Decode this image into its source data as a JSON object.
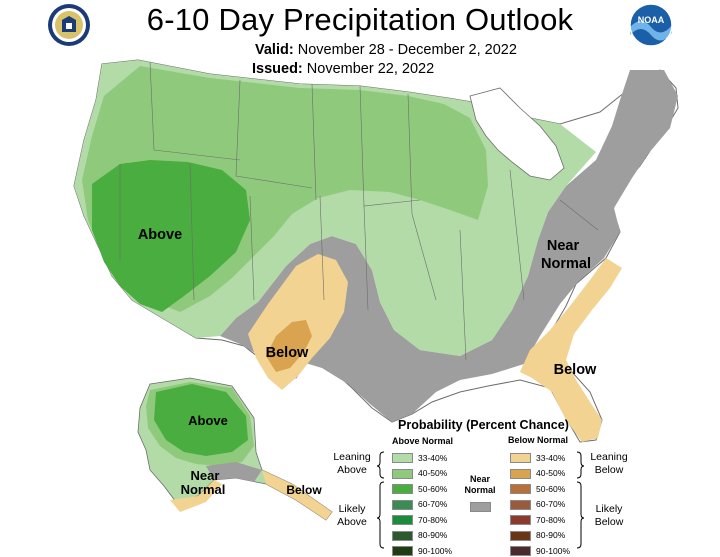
{
  "header": {
    "title": "6-10 Day Precipitation Outlook",
    "valid_label": "Valid:",
    "valid_value": "November 28 - December 2, 2022",
    "issued_label": "Issued:",
    "issued_value": "November 22, 2022",
    "left_logo": "dept-of-commerce-seal",
    "right_logo": "noaa-logo",
    "right_logo_text": "NOAA"
  },
  "map": {
    "labels": {
      "above": "Above",
      "below_sw": "Below",
      "near_line1": "Near",
      "near_line2": "Normal",
      "below_se": "Below",
      "ak_above": "Above",
      "ak_near_line1": "Near",
      "ak_near_line2": "Normal",
      "ak_below": "Below"
    },
    "colors": {
      "above_33_40": "#b3dba8",
      "above_40_50": "#8fc97c",
      "above_50_60": "#4aad3f",
      "near_normal": "#9e9e9e",
      "below_33_40": "#f2d391",
      "below_40_50": "#d9a34f",
      "no_shading": "#ffffff"
    }
  },
  "legend": {
    "title": "Probability (Percent Chance)",
    "above_header": "Above Normal",
    "below_header": "Below Normal",
    "near_label_line1": "Near",
    "near_label_line2": "Normal",
    "leaning_above_line1": "Leaning",
    "leaning_above_line2": "Above",
    "likely_above_line1": "Likely",
    "likely_above_line2": "Above",
    "leaning_below_line1": "Leaning",
    "leaning_below_line2": "Below",
    "likely_below_line1": "Likely",
    "likely_below_line2": "Below",
    "rows": [
      "33-40%",
      "40-50%",
      "50-60%",
      "60-70%",
      "70-80%",
      "80-90%",
      "90-100%"
    ],
    "above_colors": [
      "#b3dba8",
      "#8fc97c",
      "#4aad3f",
      "#3a8b54",
      "#1b8c3c",
      "#2c5a2e",
      "#1f3d12"
    ],
    "below_colors": [
      "#f2d391",
      "#d9a34f",
      "#b96f3a",
      "#9a5a3b",
      "#8a3a2e",
      "#6a3516",
      "#4a2a2a"
    ],
    "near_color": "#9e9e9e"
  }
}
